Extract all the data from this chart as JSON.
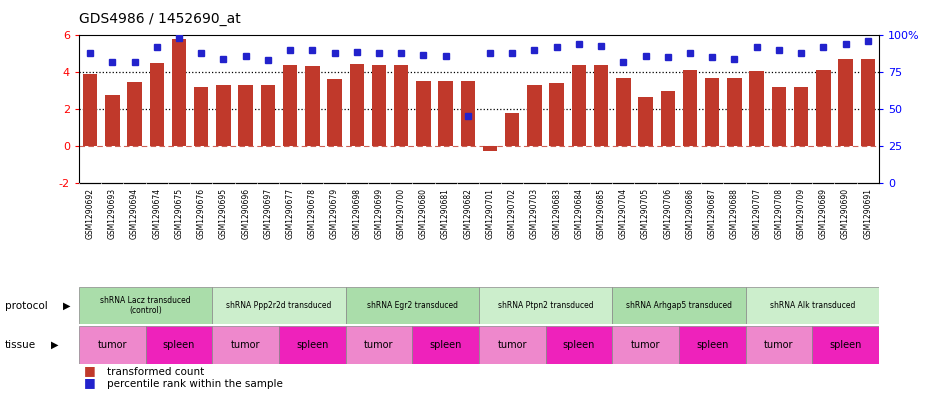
{
  "title": "GDS4986 / 1452690_at",
  "samples": [
    "GSM1290692",
    "GSM1290693",
    "GSM1290694",
    "GSM1290674",
    "GSM1290675",
    "GSM1290676",
    "GSM1290695",
    "GSM1290696",
    "GSM1290697",
    "GSM1290677",
    "GSM1290678",
    "GSM1290679",
    "GSM1290698",
    "GSM1290699",
    "GSM1290700",
    "GSM1290680",
    "GSM1290681",
    "GSM1290682",
    "GSM1290701",
    "GSM1290702",
    "GSM1290703",
    "GSM1290683",
    "GSM1290684",
    "GSM1290685",
    "GSM1290704",
    "GSM1290705",
    "GSM1290706",
    "GSM1290686",
    "GSM1290687",
    "GSM1290688",
    "GSM1290707",
    "GSM1290708",
    "GSM1290709",
    "GSM1290689",
    "GSM1290690",
    "GSM1290691"
  ],
  "bar_values": [
    3.9,
    2.75,
    3.45,
    4.5,
    5.8,
    3.2,
    3.3,
    3.3,
    3.3,
    4.4,
    4.35,
    3.65,
    4.45,
    4.4,
    4.4,
    3.5,
    3.5,
    3.5,
    -0.3,
    1.8,
    3.3,
    3.4,
    4.4,
    4.4,
    3.7,
    2.65,
    3.0,
    4.1,
    3.7,
    3.7,
    4.05,
    3.2,
    3.2,
    4.1,
    4.7,
    4.7
  ],
  "percentile_values": [
    88,
    82,
    82,
    92,
    98,
    88,
    84,
    86,
    83,
    90,
    90,
    88,
    89,
    88,
    88,
    87,
    86,
    45,
    88,
    88,
    90,
    92,
    94,
    93,
    82,
    86,
    85,
    88,
    85,
    84,
    92,
    90,
    88,
    92,
    94,
    96
  ],
  "ylim_min": -2,
  "ylim_max": 6,
  "yticks_left": [
    -2,
    0,
    2,
    4,
    6
  ],
  "yticks_right": [
    0,
    25,
    50,
    75,
    100
  ],
  "bar_color": "#C0392B",
  "dot_color": "#2222CC",
  "protocols": [
    {
      "label": "shRNA Lacz transduced\n(control)",
      "start": 0,
      "end": 6,
      "color": "#AADDAA"
    },
    {
      "label": "shRNA Ppp2r2d transduced",
      "start": 6,
      "end": 12,
      "color": "#CCEECC"
    },
    {
      "label": "shRNA Egr2 transduced",
      "start": 12,
      "end": 18,
      "color": "#AADDAA"
    },
    {
      "label": "shRNA Ptpn2 transduced",
      "start": 18,
      "end": 24,
      "color": "#CCEECC"
    },
    {
      "label": "shRNA Arhgap5 transduced",
      "start": 24,
      "end": 30,
      "color": "#AADDAA"
    },
    {
      "label": "shRNA Alk transduced",
      "start": 30,
      "end": 36,
      "color": "#CCEECC"
    }
  ],
  "tissues": [
    {
      "label": "tumor",
      "start": 0,
      "end": 3,
      "color": "#EE88CC"
    },
    {
      "label": "spleen",
      "start": 3,
      "end": 6,
      "color": "#EE22BB"
    },
    {
      "label": "tumor",
      "start": 6,
      "end": 9,
      "color": "#EE88CC"
    },
    {
      "label": "spleen",
      "start": 9,
      "end": 12,
      "color": "#EE22BB"
    },
    {
      "label": "tumor",
      "start": 12,
      "end": 15,
      "color": "#EE88CC"
    },
    {
      "label": "spleen",
      "start": 15,
      "end": 18,
      "color": "#EE22BB"
    },
    {
      "label": "tumor",
      "start": 18,
      "end": 21,
      "color": "#EE88CC"
    },
    {
      "label": "spleen",
      "start": 21,
      "end": 24,
      "color": "#EE22BB"
    },
    {
      "label": "tumor",
      "start": 24,
      "end": 27,
      "color": "#EE88CC"
    },
    {
      "label": "spleen",
      "start": 27,
      "end": 30,
      "color": "#EE22BB"
    },
    {
      "label": "tumor",
      "start": 30,
      "end": 33,
      "color": "#EE88CC"
    },
    {
      "label": "spleen",
      "start": 33,
      "end": 36,
      "color": "#EE22BB"
    }
  ],
  "label_bg_color": "#DDDDDD",
  "legend_bar_label": "transformed count",
  "legend_dot_label": "percentile rank within the sample"
}
